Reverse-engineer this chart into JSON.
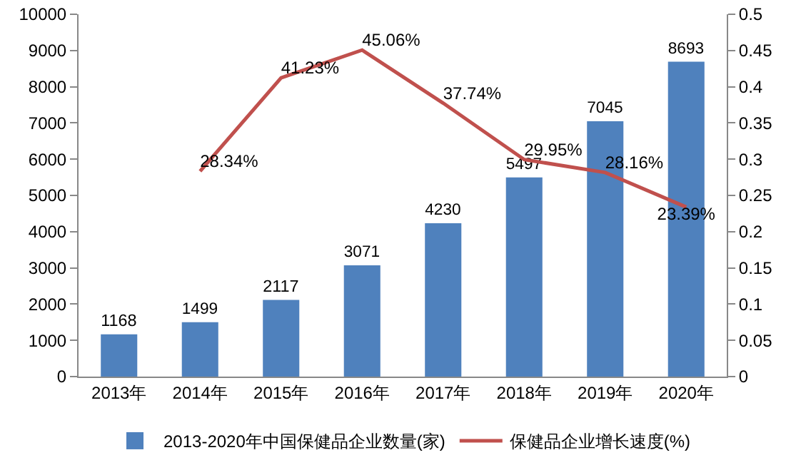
{
  "chart_data": {
    "type": "bar",
    "categories": [
      "2013年",
      "2014年",
      "2015年",
      "2016年",
      "2017年",
      "2018年",
      "2019年",
      "2020年"
    ],
    "series": [
      {
        "name": "2013-2020年中国保健品企业数量(家)",
        "color": "#4f81bd",
        "values": [
          1168,
          1499,
          2117,
          3071,
          4230,
          5497,
          7045,
          8693
        ],
        "value_labels": [
          "1168",
          "1499",
          "2117",
          "3071",
          "4230",
          "5497",
          "7045",
          "8693"
        ]
      },
      {
        "name": "保健品企业增长速度(%)",
        "type": "line",
        "axis": "y2",
        "color": "#c0504d",
        "values": [
          null,
          0.2834,
          0.4123,
          0.4506,
          0.3774,
          0.2995,
          0.2816,
          0.2339
        ],
        "value_labels": [
          null,
          "28.34%",
          "41.23%",
          "45.06%",
          "37.74%",
          "29.95%",
          "28.16%",
          "23.39%"
        ]
      }
    ],
    "ylim": [
      0,
      10000
    ],
    "yticks": [
      0,
      1000,
      2000,
      3000,
      4000,
      5000,
      6000,
      7000,
      8000,
      9000,
      10000
    ],
    "y2lim": [
      0,
      0.5
    ],
    "y2ticks": [
      0,
      0.05,
      0.1,
      0.15,
      0.2,
      0.25,
      0.3,
      0.35,
      0.4,
      0.45,
      0.5
    ],
    "grid": false,
    "legend": "bottom",
    "marker": "none",
    "line_style": "solid"
  }
}
